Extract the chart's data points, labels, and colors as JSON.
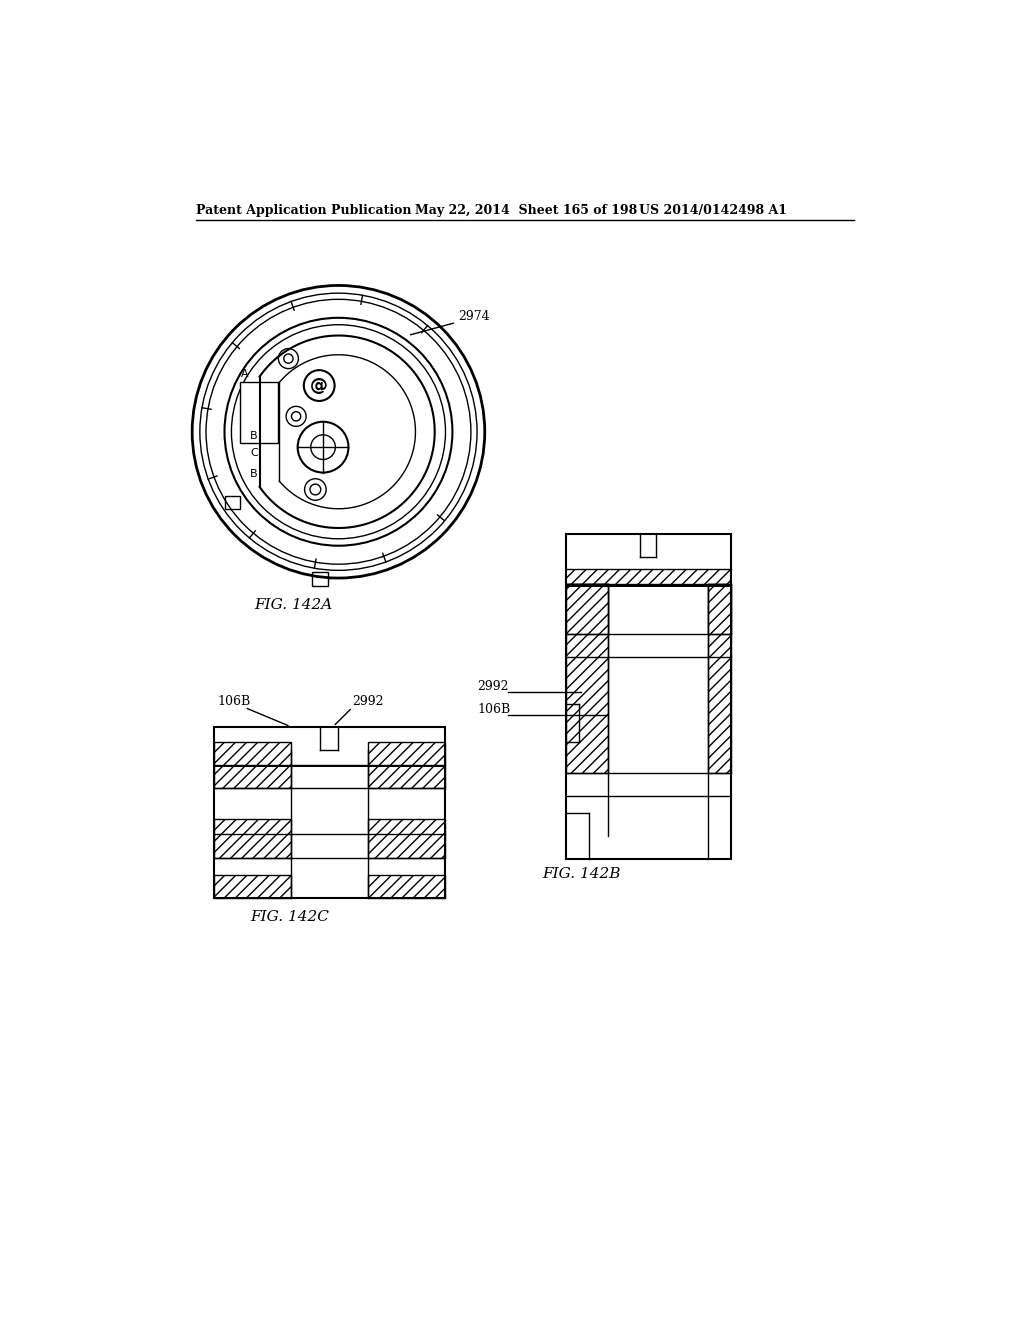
{
  "header_left": "Patent Application Publication",
  "header_middle": "May 22, 2014  Sheet 165 of 198",
  "header_right": "US 2014/0142498 A1",
  "fig_142a_label": "FIG. 142A",
  "fig_142b_label": "FIG. 142B",
  "fig_142c_label": "FIG. 142C",
  "label_2974": "2974",
  "label_2992_b": "2992",
  "label_106b_b": "106B",
  "label_106b_c": "106B",
  "label_2992_c": "2992",
  "background_color": "#ffffff",
  "line_color": "#000000"
}
